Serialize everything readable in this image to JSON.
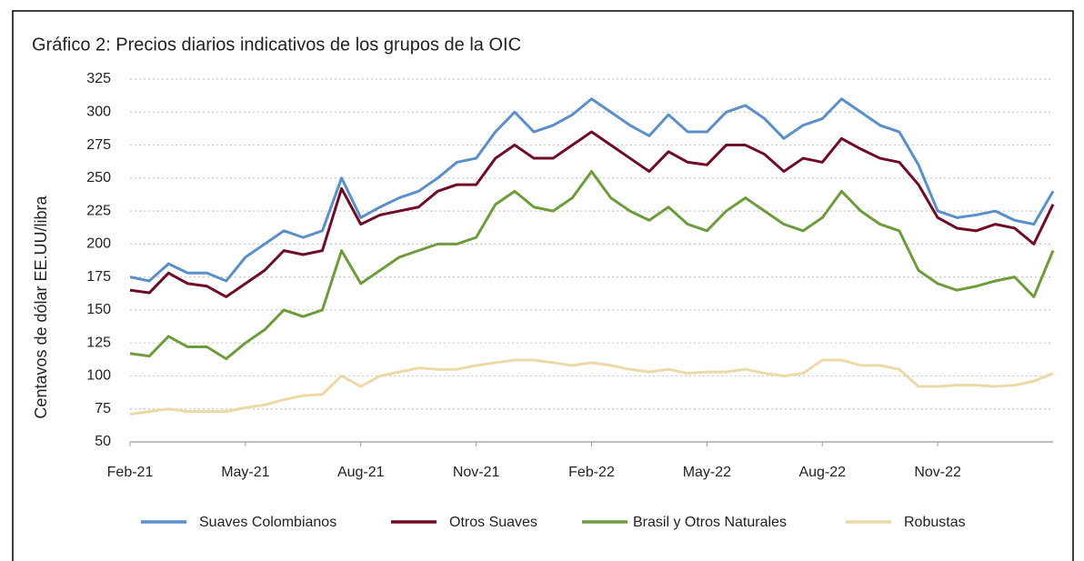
{
  "chart_data": {
    "type": "line",
    "title": "Gráfico 2: Precios diarios indicativos de los grupos de la OIC",
    "y_label": "Centavos de dólar EE.UU/libra",
    "categories": [
      "Feb-21",
      null,
      null,
      null,
      null,
      null,
      "May-21",
      null,
      null,
      null,
      null,
      null,
      "Aug-21",
      null,
      null,
      null,
      null,
      null,
      "Nov-21",
      null,
      null,
      null,
      null,
      null,
      "Feb-22",
      null,
      null,
      null,
      null,
      null,
      "May-22",
      null,
      null,
      null,
      null,
      null,
      "Aug-22",
      null,
      null,
      null,
      null,
      null,
      "Nov-22",
      null,
      null,
      null,
      null,
      null,
      null
    ],
    "series": [
      {
        "name": "Suaves Colombianos",
        "color": "#5b8fc9",
        "values": [
          175,
          172,
          185,
          178,
          178,
          172,
          190,
          200,
          210,
          205,
          210,
          250,
          220,
          228,
          235,
          240,
          250,
          262,
          265,
          285,
          300,
          285,
          290,
          298,
          310,
          300,
          290,
          282,
          298,
          285,
          285,
          300,
          305,
          295,
          280,
          290,
          295,
          310,
          300,
          290,
          285,
          260,
          225,
          220,
          222,
          225,
          218,
          215,
          240
        ]
      },
      {
        "name": "Otros Suaves",
        "color": "#6e0c25",
        "values": [
          165,
          163,
          178,
          170,
          168,
          160,
          170,
          180,
          195,
          192,
          195,
          242,
          215,
          222,
          225,
          228,
          240,
          245,
          245,
          265,
          275,
          265,
          265,
          275,
          285,
          275,
          265,
          255,
          270,
          262,
          260,
          275,
          275,
          268,
          255,
          265,
          262,
          280,
          272,
          265,
          262,
          245,
          220,
          212,
          210,
          215,
          212,
          200,
          230
        ]
      },
      {
        "name": "Brasil y Otros Naturales",
        "color": "#6e9b3c",
        "values": [
          117,
          115,
          130,
          122,
          122,
          113,
          125,
          135,
          150,
          145,
          150,
          195,
          170,
          180,
          190,
          195,
          200,
          200,
          205,
          230,
          240,
          228,
          225,
          235,
          255,
          235,
          225,
          218,
          228,
          215,
          210,
          225,
          235,
          225,
          215,
          210,
          220,
          240,
          225,
          215,
          210,
          180,
          170,
          165,
          168,
          172,
          175,
          160,
          195
        ]
      },
      {
        "name": "Robustas",
        "color": "#ecd9a8",
        "values": [
          71,
          73,
          75,
          73,
          73,
          73,
          76,
          78,
          82,
          85,
          86,
          100,
          92,
          100,
          103,
          106,
          105,
          105,
          108,
          110,
          112,
          112,
          110,
          108,
          110,
          108,
          105,
          103,
          105,
          102,
          103,
          103,
          105,
          102,
          100,
          102,
          112,
          112,
          108,
          108,
          105,
          92,
          92,
          93,
          93,
          92,
          93,
          96,
          102
        ]
      }
    ],
    "ylim": [
      50,
      325
    ],
    "yticks": [
      50,
      75,
      100,
      125,
      150,
      175,
      200,
      225,
      250,
      275,
      300,
      325
    ],
    "grid": true
  }
}
